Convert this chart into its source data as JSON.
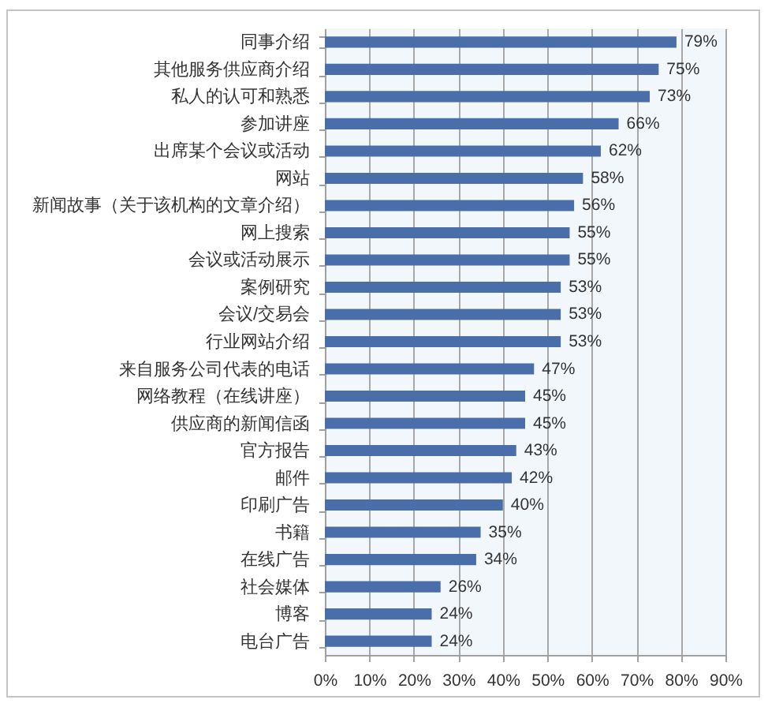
{
  "chart_data": {
    "type": "bar",
    "orientation": "horizontal",
    "categories": [
      "同事介绍",
      "其他服务供应商介绍",
      "私人的认可和熟悉",
      "参加讲座",
      "出席某个会议或活动",
      "网站",
      "新闻故事（关于该机构的文章介绍）",
      "网上搜索",
      "会议或活动展示",
      "案例研究",
      "会议/交易会",
      "行业网站介绍",
      "来自服务公司代表的电话",
      "网络教程（在线讲座）",
      "供应商的新闻信函",
      "官方报告",
      "邮件",
      "印刷广告",
      "书籍",
      "在线广告",
      "社会媒体",
      "博客",
      "电台广告"
    ],
    "values": [
      79,
      75,
      73,
      66,
      62,
      58,
      56,
      55,
      55,
      53,
      53,
      53,
      47,
      45,
      45,
      43,
      42,
      40,
      35,
      34,
      26,
      24,
      24
    ],
    "value_labels": [
      "79%",
      "75%",
      "73%",
      "66%",
      "62%",
      "58%",
      "56%",
      "55%",
      "55%",
      "53%",
      "53%",
      "53%",
      "47%",
      "45%",
      "45%",
      "43%",
      "42%",
      "40%",
      "35%",
      "34%",
      "26%",
      "24%",
      "24%"
    ],
    "color": "#4a6ea9",
    "xlim": [
      0,
      90
    ],
    "xticks": [
      {
        "value": 0,
        "label": "0%"
      },
      {
        "value": 10,
        "label": "10%"
      },
      {
        "value": 20,
        "label": "20%"
      },
      {
        "value": 30,
        "label": "30%"
      },
      {
        "value": 40,
        "label": "40%"
      },
      {
        "value": 50,
        "label": "50%"
      },
      {
        "value": 60,
        "label": "60%"
      },
      {
        "value": 70,
        "label": "70%"
      },
      {
        "value": 80,
        "label": "80%"
      },
      {
        "value": 90,
        "label": "90%"
      }
    ],
    "grid": "x"
  }
}
